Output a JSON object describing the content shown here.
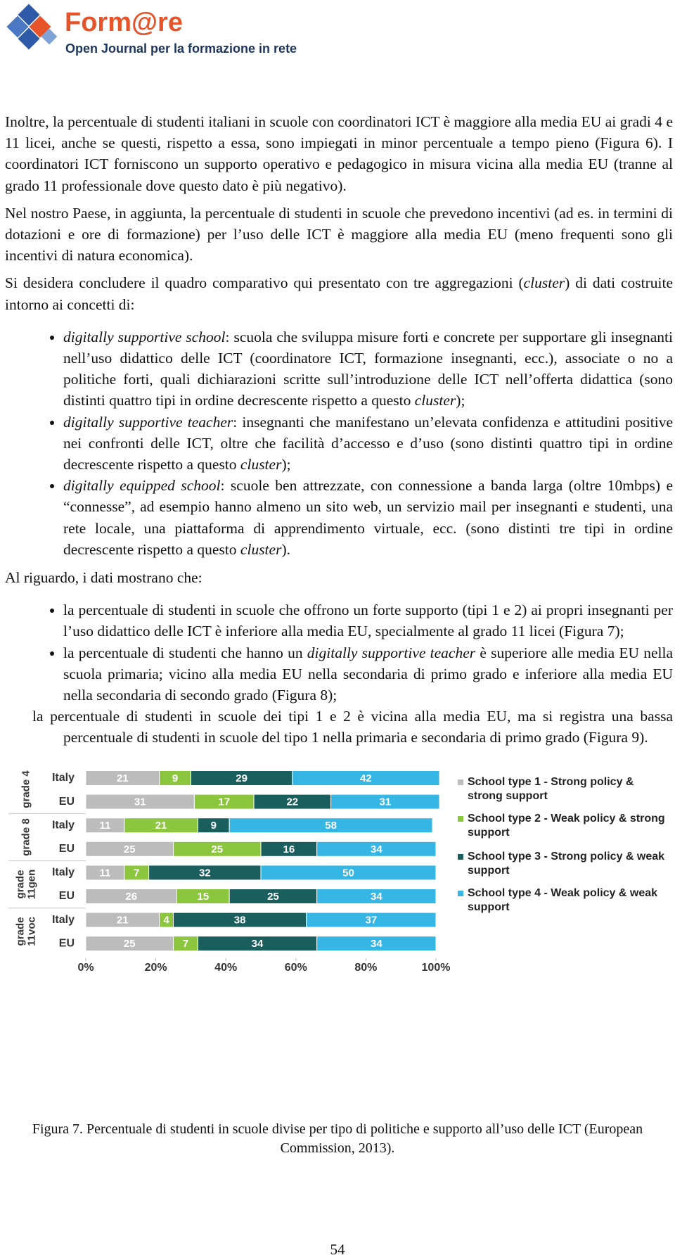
{
  "header": {
    "logo_title": "Form@re",
    "logo_subtitle": "Open Journal per la formazione in rete"
  },
  "body": {
    "p1": "Inoltre, la percentuale di studenti italiani in scuole con coordinatori ICT è maggiore alla media EU ai gradi 4 e 11 licei, anche se questi, rispetto a essa, sono impiegati in minor percentuale a tempo pieno (Figura 6). I coordinatori ICT forniscono un supporto operativo e pedagogico in misura vicina alla media EU (tranne al grado 11 professionale dove questo dato è più negativo).",
    "p2": "Nel nostro Paese, in aggiunta, la percentuale di studenti in scuole che prevedono incentivi (ad es. in termini di dotazioni e ore di formazione) per l’uso delle ICT è maggiore alla media EU (meno frequenti sono gli incentivi di natura economica).",
    "p3": [
      "Si desidera concludere il quadro comparativo qui presentato con tre aggregazioni (",
      "cluster",
      ") di dati costruite intorno ai concetti di:"
    ],
    "list1": [
      [
        "digitally supportive school",
        ": scuola che sviluppa misure forti e concrete per supportare gli insegnanti nell’uso didattico delle ICT (coordinatore ICT, formazione insegnanti, ecc.), associate o no a politiche forti, quali dichiarazioni scritte sull’introduzione delle ICT nell’offerta didattica (sono distinti quattro tipi in ordine decrescente rispetto a questo ",
        "cluster",
        ");"
      ],
      [
        "digitally supportive teacher",
        ": insegnanti che manifestano un’elevata confidenza e attitudini positive nei confronti delle ICT, oltre che facilità d’accesso e d’uso (sono distinti quattro tipi in ordine decrescente rispetto a questo ",
        "cluster",
        ");"
      ],
      [
        "digitally equipped school",
        ": scuole ben attrezzate, con connessione a banda larga (oltre 10mbps) e “connesse”, ad esempio hanno almeno un sito web, un servizio mail per insegnanti e studenti, una rete locale, una piattaforma di apprendimento virtuale, ecc. (sono distinti tre tipi in ordine decrescente rispetto a questo ",
        "cluster",
        ")."
      ]
    ],
    "p4": "Al riguardo, i dati mostrano che:",
    "list2": [
      [
        "la percentuale di studenti in scuole che offrono un forte supporto (tipi 1 e 2) ai propri insegnanti per l’uso didattico delle ICT è inferiore alla media EU, specialmente al grado 11 licei (Figura 7);"
      ],
      [
        "la percentuale di studenti che hanno un ",
        "digitally supportive teacher",
        " è superiore alle media EU nella scuola primaria; vicino alla media EU nella secondaria di primo grado e inferiore alla media EU nella secondaria di secondo grado (Figura 8);"
      ]
    ],
    "p5": "la percentuale di studenti in scuole dei tipi 1 e 2 è vicina alla media EU, ma si registra una bassa percentuale di studenti in scuole del tipo 1 nella primaria e secondaria di primo grado (Figura 9)."
  },
  "chart_data": {
    "type": "bar",
    "orientation": "horizontal",
    "stacked": true,
    "groups": [
      "grade 4",
      "grade 8",
      "grade 11gen",
      "grade 11voc"
    ],
    "categories": [
      "Italy",
      "EU",
      "Italy",
      "EU",
      "Italy",
      "EU",
      "Italy",
      "EU"
    ],
    "series": [
      {
        "name": "School type 1 - Strong policy & strong support",
        "color": "#bcbcbc",
        "values": [
          21,
          31,
          11,
          25,
          11,
          26,
          21,
          25
        ]
      },
      {
        "name": "School type 2 - Weak policy & strong support",
        "color": "#8cc63e",
        "values": [
          9,
          17,
          21,
          25,
          7,
          15,
          4,
          7
        ]
      },
      {
        "name": "School type 3 - Strong policy & weak support",
        "color": "#1b5e5e",
        "values": [
          29,
          22,
          9,
          16,
          32,
          25,
          38,
          34
        ]
      },
      {
        "name": "School type 4 - Weak policy & weak support",
        "color": "#35b6e5",
        "values": [
          42,
          31,
          58,
          34,
          50,
          34,
          37,
          34
        ]
      }
    ],
    "xlim": [
      0,
      100
    ],
    "xticks": [
      {
        "value": 0,
        "label": "0%"
      },
      {
        "value": 20,
        "label": "20%"
      },
      {
        "value": 40,
        "label": "40%"
      },
      {
        "value": 60,
        "label": "60%"
      },
      {
        "value": 80,
        "label": "80%"
      },
      {
        "value": 100,
        "label": "100%"
      }
    ],
    "legend": "right"
  },
  "caption": "Figura 7. Percentuale di studenti in scuole divise per tipo di politiche e supporto all’uso delle ICT (European Commission, 2013).",
  "page_number": "54"
}
